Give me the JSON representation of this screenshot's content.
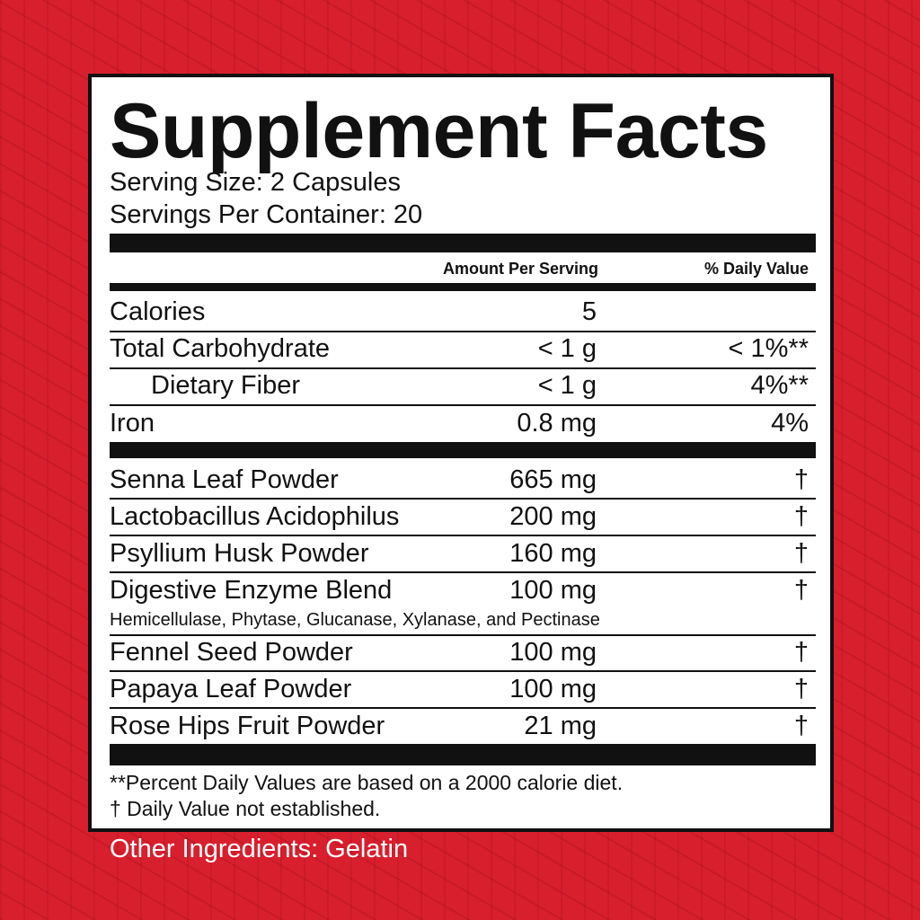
{
  "title": "Supplement Facts",
  "serving_size": "Serving Size: 2 Capsules",
  "servings_per_container": "Servings Per Container: 20",
  "header": {
    "amount": "Amount Per Serving",
    "dv": "% Daily Value"
  },
  "nutrients": [
    {
      "name": "Calories",
      "amount": "5",
      "dv": ""
    },
    {
      "name": "Total Carbohydrate",
      "amount": "< 1 g",
      "dv": "< 1%**"
    },
    {
      "name": "Dietary Fiber",
      "amount": "< 1 g",
      "dv": "4%**"
    },
    {
      "name": "Iron",
      "amount": "0.8 mg",
      "dv": "4%"
    }
  ],
  "ingredients": [
    {
      "name": "Senna Leaf Powder",
      "amount": "665 mg",
      "dv": "†"
    },
    {
      "name": "Lactobacillus Acidophilus",
      "amount": "200 mg",
      "dv": "†"
    },
    {
      "name": "Psyllium Husk Powder",
      "amount": "160 mg",
      "dv": "†"
    },
    {
      "name": "Digestive Enzyme Blend",
      "amount": "100 mg",
      "dv": "†",
      "sub": "Hemicellulase, Phytase, Glucanase, Xylanase, and Pectinase"
    },
    {
      "name": "Fennel Seed Powder",
      "amount": "100 mg",
      "dv": "†"
    },
    {
      "name": "Papaya Leaf Powder",
      "amount": "100 mg",
      "dv": "†"
    },
    {
      "name": "Rose Hips Fruit Powder",
      "amount": "21 mg",
      "dv": "†"
    }
  ],
  "footnotes": [
    "**Percent Daily Values are based on a 2000 calorie diet.",
    "† Daily Value not established."
  ],
  "other_ingredients": "Other Ingredients: Gelatin",
  "colors": {
    "background": "#d81f2e",
    "label": "#ffffff",
    "ink": "#111111"
  }
}
